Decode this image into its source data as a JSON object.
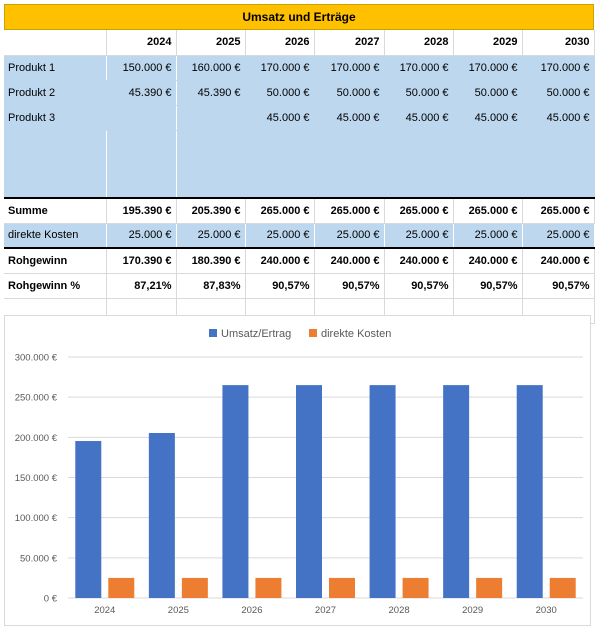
{
  "sheet": {
    "title": "Umsatz und Erträge",
    "years": [
      "2024",
      "2025",
      "2026",
      "2027",
      "2028",
      "2029",
      "2030"
    ],
    "rows": [
      {
        "label": "Produkt 1",
        "values": [
          "150.000 €",
          "160.000 €",
          "170.000 €",
          "170.000 €",
          "170.000 €",
          "170.000 €",
          "170.000 €"
        ]
      },
      {
        "label": "Produkt 2",
        "values": [
          "45.390 €",
          "45.390 €",
          "50.000 €",
          "50.000 €",
          "50.000 €",
          "50.000 €",
          "50.000 €"
        ]
      },
      {
        "label": "Produkt 3",
        "values": [
          "",
          "",
          "45.000 €",
          "45.000 €",
          "45.000 €",
          "45.000 €",
          "45.000 €"
        ]
      },
      {
        "label": "Summe",
        "values": [
          "195.390 €",
          "205.390 €",
          "265.000 €",
          "265.000 €",
          "265.000 €",
          "265.000 €",
          "265.000 €"
        ]
      },
      {
        "label": "direkte Kosten",
        "values": [
          "25.000 €",
          "25.000 €",
          "25.000 €",
          "25.000 €",
          "25.000 €",
          "25.000 €",
          "25.000 €"
        ]
      },
      {
        "label": "Rohgewinn",
        "values": [
          "170.390 €",
          "180.390 €",
          "240.000 €",
          "240.000 €",
          "240.000 €",
          "240.000 €",
          "240.000 €"
        ]
      },
      {
        "label": "Rohgewinn %",
        "values": [
          "87,21%",
          "87,83%",
          "90,57%",
          "90,57%",
          "90,57%",
          "90,57%",
          "90,57%"
        ]
      }
    ]
  },
  "chart_data": {
    "type": "bar",
    "categories": [
      "2024",
      "2025",
      "2026",
      "2027",
      "2028",
      "2029",
      "2030"
    ],
    "series": [
      {
        "name": "Umsatz/Ertrag",
        "color": "#4472c4",
        "values": [
          195390,
          205390,
          265000,
          265000,
          265000,
          265000,
          265000
        ]
      },
      {
        "name": "direkte Kosten",
        "color": "#ed7d31",
        "values": [
          25000,
          25000,
          25000,
          25000,
          25000,
          25000,
          25000
        ]
      }
    ],
    "ylim": [
      0,
      300000
    ],
    "yticks": [
      0,
      50000,
      100000,
      150000,
      200000,
      250000,
      300000
    ],
    "ytick_labels": [
      "0 €",
      "50.000 €",
      "100.000 €",
      "150.000 €",
      "200.000 €",
      "250.000 €",
      "300.000 €"
    ],
    "grid": true,
    "legend": "top-center"
  }
}
